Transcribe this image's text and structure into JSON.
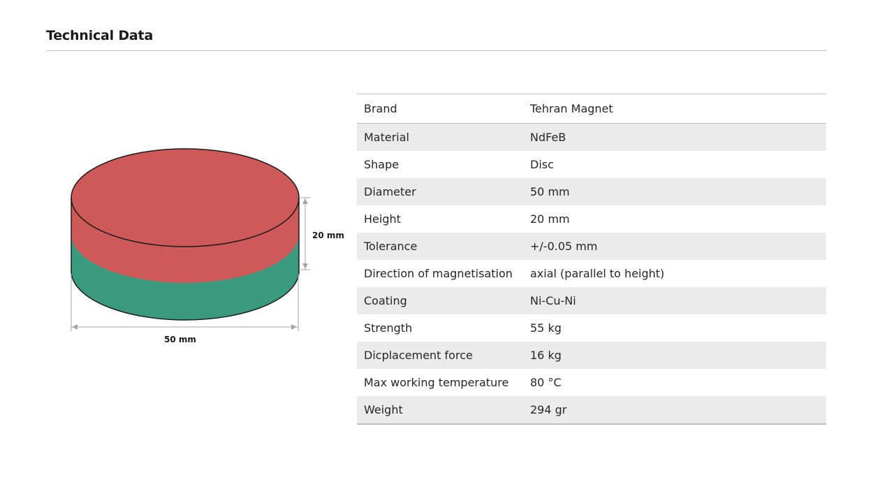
{
  "header": {
    "title": "Technical Data"
  },
  "figure": {
    "height_label": "20 mm",
    "diameter_label": "50 mm",
    "top_color": "#cd5a58",
    "bottom_color": "#3a9a7e",
    "outline_color": "#1a1a1a",
    "dimension_line_color": "#a6a6a6"
  },
  "specs": {
    "rows": [
      {
        "label": "Brand",
        "value": "Tehran Magnet"
      },
      {
        "label": "Material",
        "value": "NdFeB"
      },
      {
        "label": "Shape",
        "value": "Disc"
      },
      {
        "label": "Diameter",
        "value": "50 mm"
      },
      {
        "label": "Height",
        "value": "20 mm"
      },
      {
        "label": "Tolerance",
        "value": "+/-0.05 mm"
      },
      {
        "label": "Direction of magnetisation",
        "value": "axial (parallel to height)"
      },
      {
        "label": "Coating",
        "value": "Ni-Cu-Ni"
      },
      {
        "label": "Strength",
        "value": "55 kg"
      },
      {
        "label": "Dicplacement force",
        "value": "16 kg"
      },
      {
        "label": "Max working temperature",
        "value": "80 °C"
      },
      {
        "label": "Weight",
        "value": "294 gr"
      }
    ],
    "shaded_color": "#ebebeb"
  }
}
